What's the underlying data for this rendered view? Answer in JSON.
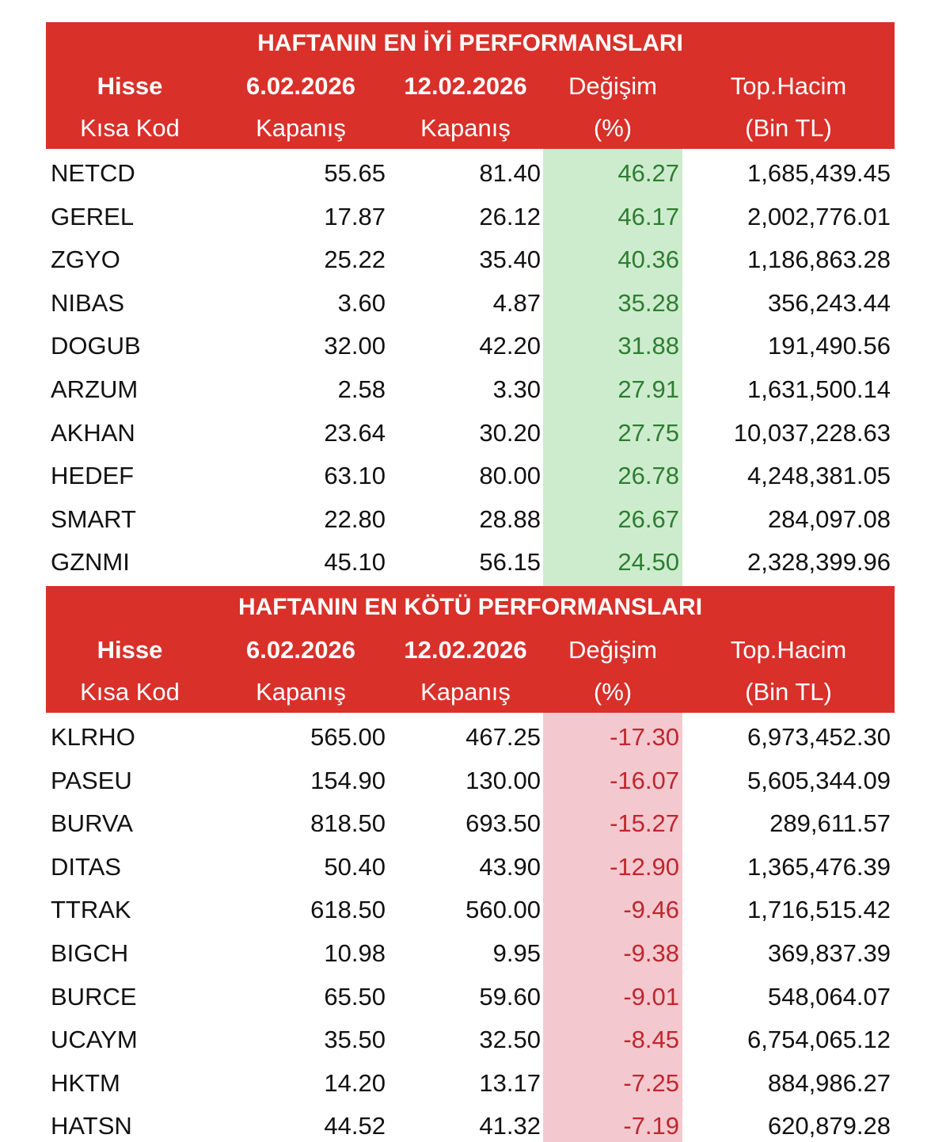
{
  "tables": [
    {
      "title": "HAFTANIN EN İYİ PERFORMANSLARI",
      "header": [
        [
          "Hisse",
          "6.02.2026",
          "12.02.2026",
          "Değişim",
          "Top.Hacim"
        ],
        [
          "Kısa Kod",
          "Kapanış",
          "Kapanış",
          "(%)",
          "(Bin TL)"
        ]
      ],
      "rows": [
        [
          "NETCD",
          "55.65",
          "81.40",
          "46.27",
          "1,685,439.45"
        ],
        [
          "GEREL",
          "17.87",
          "26.12",
          "46.17",
          "2,002,776.01"
        ],
        [
          "ZGYO",
          "25.22",
          "35.40",
          "40.36",
          "1,186,863.28"
        ],
        [
          "NIBAS",
          "3.60",
          "4.87",
          "35.28",
          "356,243.44"
        ],
        [
          "DOGUB",
          "32.00",
          "42.20",
          "31.88",
          "191,490.56"
        ],
        [
          "ARZUM",
          "2.58",
          "3.30",
          "27.91",
          "1,631,500.14"
        ],
        [
          "AKHAN",
          "23.64",
          "30.20",
          "27.75",
          "10,037,228.63"
        ],
        [
          "HEDEF",
          "63.10",
          "80.00",
          "26.78",
          "4,248,381.05"
        ],
        [
          "SMART",
          "22.80",
          "28.88",
          "26.67",
          "284,097.08"
        ],
        [
          "GZNMI",
          "45.10",
          "56.15",
          "24.50",
          "2,328,399.96"
        ]
      ]
    },
    {
      "title": "HAFTANIN EN KÖTÜ PERFORMANSLARI",
      "header": [
        [
          "Hisse",
          "6.02.2026",
          "12.02.2026",
          "Değişim",
          "Top.Hacim"
        ],
        [
          "Kısa Kod",
          "Kapanış",
          "Kapanış",
          "(%)",
          "(Bin TL)"
        ]
      ],
      "rows": [
        [
          "KLRHO",
          "565.00",
          "467.25",
          "-17.30",
          "6,973,452.30"
        ],
        [
          "PASEU",
          "154.90",
          "130.00",
          "-16.07",
          "5,605,344.09"
        ],
        [
          "BURVA",
          "818.50",
          "693.50",
          "-15.27",
          "289,611.57"
        ],
        [
          "DITAS",
          "50.40",
          "43.90",
          "-12.90",
          "1,365,476.39"
        ],
        [
          "TTRAK",
          "618.50",
          "560.00",
          "-9.46",
          "1,716,515.42"
        ],
        [
          "BIGCH",
          "10.98",
          "9.95",
          "-9.38",
          "369,837.39"
        ],
        [
          "BURCE",
          "65.50",
          "59.60",
          "-9.01",
          "548,064.07"
        ],
        [
          "UCAYM",
          "35.50",
          "32.50",
          "-8.45",
          "6,754,065.12"
        ],
        [
          "HKTM",
          "14.20",
          "13.17",
          "-7.25",
          "884,986.27"
        ],
        [
          "HATSN",
          "44.52",
          "41.32",
          "-7.19",
          "620,879.28"
        ]
      ]
    }
  ]
}
